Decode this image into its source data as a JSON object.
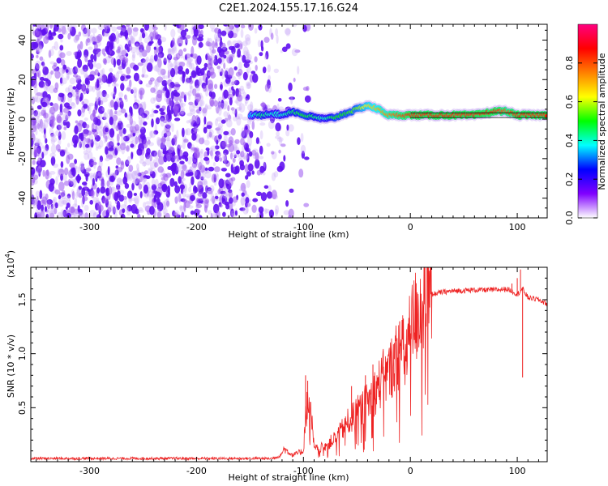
{
  "title": "C2E1.2024.155.17.16.G24",
  "chart_data": [
    {
      "type": "heatmap",
      "name": "spectrogram",
      "xlabel": "Height of straight line (km)",
      "ylabel": "Frequency (Hz)",
      "xlim": [
        -355,
        128
      ],
      "ylim": [
        -50,
        48
      ],
      "xticks": [
        -300,
        -200,
        -100,
        0,
        100
      ],
      "yticks": [
        -40,
        -20,
        0,
        20,
        40
      ],
      "colorbar": {
        "label": "Normalized spectral amplitude",
        "range": [
          0,
          1
        ],
        "ticks": [
          "0.0",
          "0.2",
          "0.4",
          "0.6",
          "0.8"
        ],
        "colormap": [
          "#ffffff",
          "#8000ff",
          "#0000ff",
          "#00ffff",
          "#00ff00",
          "#ffff00",
          "#ff8000",
          "#ff0000",
          "#ff0080"
        ]
      },
      "noise_region_x": [
        -355,
        -120
      ],
      "tone_track": {
        "x": [
          -150,
          -140,
          -130,
          -120,
          -110,
          -100,
          -90,
          -80,
          -70,
          -60,
          -50,
          -40,
          -30,
          -20,
          -10,
          0,
          20,
          40,
          60,
          80,
          90,
          100,
          110,
          128
        ],
        "y": [
          2,
          2,
          3,
          2,
          4,
          2,
          1,
          0,
          1,
          3,
          5,
          7,
          5,
          2,
          2,
          2,
          2,
          2,
          2,
          4,
          4,
          2,
          2,
          2
        ],
        "amplitude": [
          0.35,
          0.45,
          0.4,
          0.4,
          0.45,
          0.5,
          0.45,
          0.4,
          0.5,
          0.5,
          0.55,
          0.65,
          0.7,
          0.75,
          0.8,
          0.85,
          0.85,
          0.85,
          0.85,
          0.85,
          0.8,
          0.85,
          0.85,
          0.85
        ]
      }
    },
    {
      "type": "line",
      "name": "snr",
      "xlabel": "Height of straight line (km)",
      "ylabel": "SNR (10 * v/v)",
      "multiplier_label": "(x10",
      "multiplier_exp": "4",
      "multiplier_close": ")",
      "xlim": [
        -355,
        128
      ],
      "ylim": [
        0,
        1.8
      ],
      "xticks": [
        -300,
        -200,
        -100,
        0,
        100
      ],
      "yticks": [
        0.5,
        1.0,
        1.5
      ],
      "ytick_labels": [
        "0.5",
        "1.0",
        "1.5"
      ],
      "line_color": "#ee2222",
      "envelope": {
        "x": [
          -355,
          -200,
          -130,
          -122,
          -118,
          -110,
          -100,
          -98,
          -95,
          -92,
          -90,
          -85,
          -80,
          -75,
          -70,
          -65,
          -60,
          -55,
          -50,
          -45,
          -40,
          -35,
          -30,
          -25,
          -20,
          -15,
          -10,
          -8,
          -5,
          0,
          5,
          10,
          20,
          30,
          40,
          60,
          80,
          90,
          95,
          100,
          105,
          110,
          120,
          128
        ],
        "y": [
          0.03,
          0.03,
          0.03,
          0.05,
          0.12,
          0.06,
          0.1,
          0.45,
          0.55,
          0.35,
          0.12,
          0.12,
          0.15,
          0.18,
          0.22,
          0.28,
          0.35,
          0.4,
          0.45,
          0.5,
          0.55,
          0.62,
          0.7,
          0.78,
          0.82,
          0.95,
          1.0,
          1.05,
          0.95,
          1.2,
          1.35,
          1.45,
          1.55,
          1.57,
          1.58,
          1.59,
          1.59,
          1.6,
          1.58,
          1.55,
          1.6,
          1.52,
          1.5,
          1.46
        ]
      },
      "spikes": [
        {
          "x": -98,
          "y": 0.8
        },
        {
          "x": -96,
          "y": 0.75
        },
        {
          "x": -55,
          "y": 0.7
        },
        {
          "x": -42,
          "y": 0.8
        },
        {
          "x": -35,
          "y": 0.9
        },
        {
          "x": -25,
          "y": 0.88
        },
        {
          "x": -15,
          "y": 1.1
        },
        {
          "x": -10,
          "y": 1.3
        },
        {
          "x": 5,
          "y": 1.4
        },
        {
          "x": 95,
          "y": 1.65
        },
        {
          "x": 100,
          "y": 1.7
        },
        {
          "x": 103,
          "y": 1.78
        },
        {
          "x": 105,
          "y": 0.78
        }
      ]
    }
  ]
}
